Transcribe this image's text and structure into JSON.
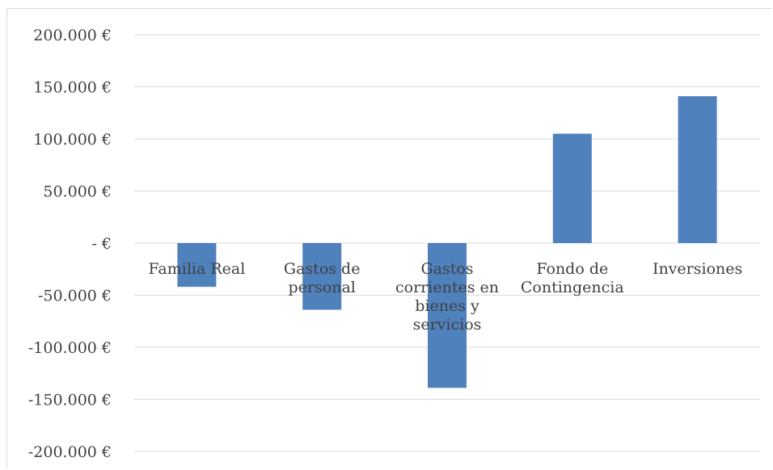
{
  "chart_data": {
    "type": "bar",
    "categories": [
      [
        "Familia Real"
      ],
      [
        "Gastos de",
        "personal"
      ],
      [
        "Gastos",
        "corrientes en",
        "bienes y",
        "servicios"
      ],
      [
        "Fondo de",
        "Contingencia"
      ],
      [
        "Inversiones"
      ]
    ],
    "values": [
      -42000,
      -64000,
      -139000,
      105000,
      141000
    ],
    "ylim": [
      -200000,
      200000
    ],
    "yticks": [
      200000,
      150000,
      100000,
      50000,
      0,
      -50000,
      -100000,
      -150000,
      -200000
    ],
    "ytick_labels": [
      "200.000 €",
      "150.000 €",
      "100.000 €",
      "50.000 €",
      "-  €",
      "-50.000 €",
      "-100.000 €",
      "-150.000 €",
      "-200.000 €"
    ],
    "grid": true,
    "bar_color": "#4f81bd",
    "grid_color": "#d9d9d9"
  }
}
